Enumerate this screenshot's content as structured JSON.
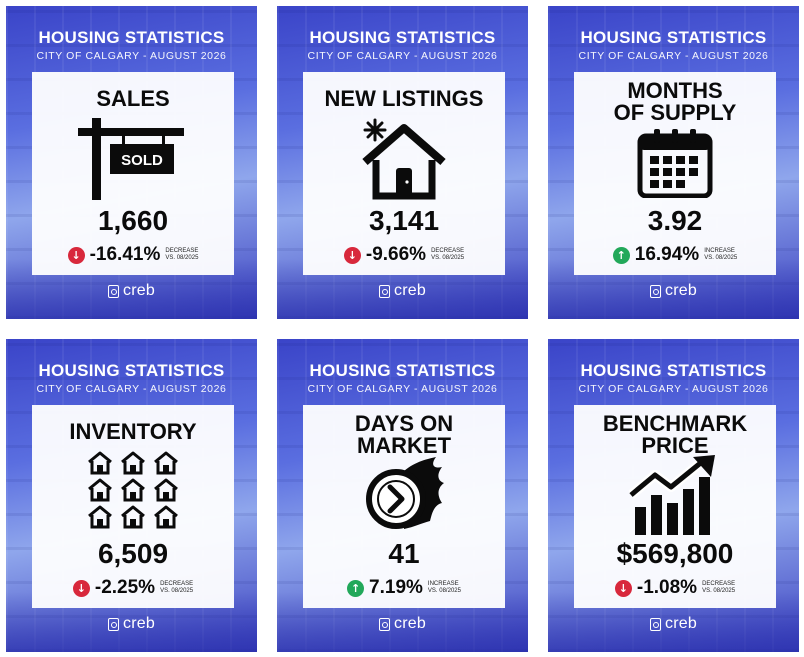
{
  "cards": [
    {
      "header": "HOUSING STATISTICS",
      "subheader": "CITY OF CALGARY - AUGUST 2026",
      "title": "SALES",
      "sign_text": "SOLD",
      "value": "1,660",
      "change": "-16.41%",
      "direction": "down",
      "note_line1": "DECREASE",
      "note_line2": "VS. 08/2025",
      "icon": "sold-sign-icon",
      "logo": "creb"
    },
    {
      "header": "HOUSING STATISTICS",
      "subheader": "CITY OF CALGARY - AUGUST 2026",
      "title": "NEW LISTINGS",
      "value": "3,141",
      "change": "-9.66%",
      "direction": "down",
      "note_line1": "DECREASE",
      "note_line2": "VS. 08/2025",
      "icon": "new-house-icon",
      "logo": "creb"
    },
    {
      "header": "HOUSING STATISTICS",
      "subheader": "CITY OF CALGARY - AUGUST 2026",
      "title_line1": "MONTHS",
      "title_line2": "OF SUPPLY",
      "value": "3.92",
      "change": "16.94%",
      "direction": "up",
      "note_line1": "INCREASE",
      "note_line2": "VS. 08/2025",
      "icon": "calendar-icon",
      "logo": "creb"
    },
    {
      "header": "HOUSING STATISTICS",
      "subheader": "CITY OF CALGARY - AUGUST 2026",
      "title": "INVENTORY",
      "value": "6,509",
      "change": "-2.25%",
      "direction": "down",
      "note_line1": "DECREASE",
      "note_line2": "VS. 08/2025",
      "icon": "houses-grid-icon",
      "logo": "creb"
    },
    {
      "header": "HOUSING STATISTICS",
      "subheader": "CITY OF CALGARY - AUGUST 2026",
      "title_line1": "DAYS ON",
      "title_line2": "MARKET",
      "value": "41",
      "change": "7.19%",
      "direction": "up",
      "note_line1": "INCREASE",
      "note_line2": "VS. 08/2025",
      "icon": "fast-clock-icon",
      "logo": "creb"
    },
    {
      "header": "HOUSING STATISTICS",
      "subheader": "CITY OF CALGARY - AUGUST 2026",
      "title_line1": "BENCHMARK",
      "title_line2": "PRICE",
      "value": "$569,800",
      "change": "-1.08%",
      "direction": "down",
      "note_line1": "DECREASE",
      "note_line2": "VS. 08/2025",
      "icon": "growth-chart-icon",
      "logo": "creb"
    }
  ],
  "colors": {
    "down": "#d8283c",
    "up": "#22a85a",
    "card_blue": "#3a44c8"
  }
}
